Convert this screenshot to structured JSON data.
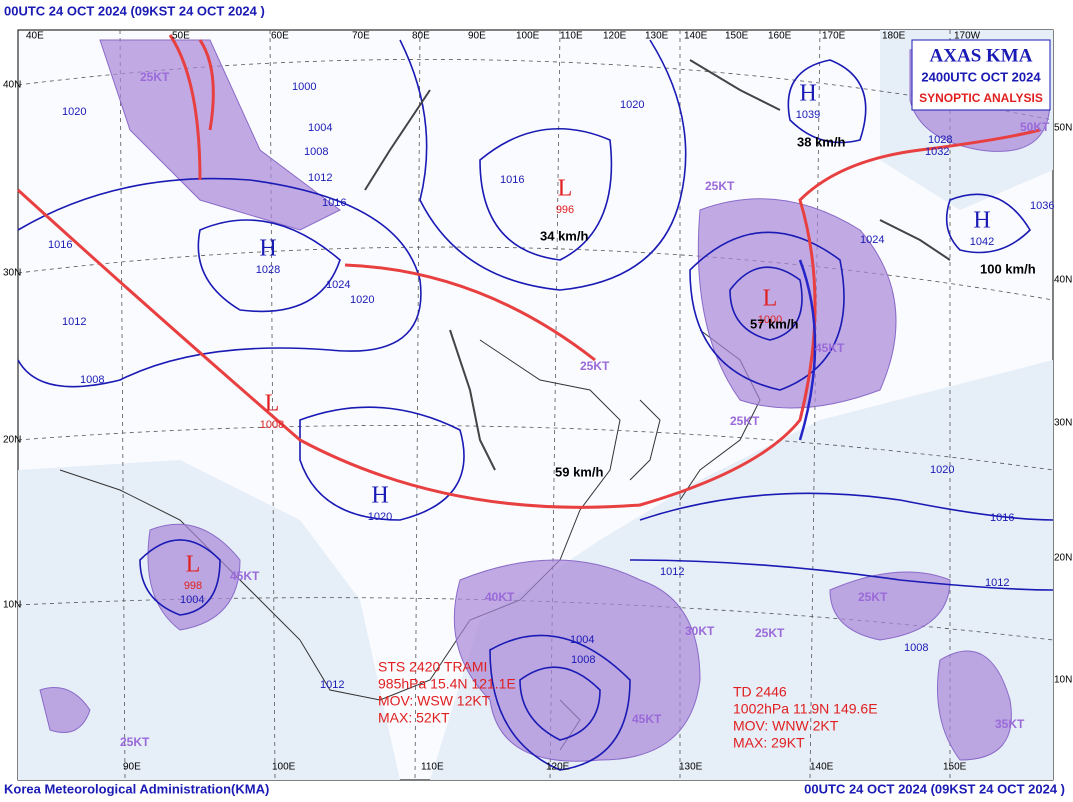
{
  "header": {
    "left": "00UTC 24 OCT 2024 (09KST 24 OCT 2024 )"
  },
  "footer": {
    "left": "Korea Meteorological Administration(KMA)",
    "right": "00UTC 24 OCT 2024 (09KST 24 OCT 2024 )"
  },
  "title_box": {
    "agency": "AXAS KMA",
    "time": "2400UTC OCT 2024",
    "kind": "SYNOPTIC ANALYSIS"
  },
  "top_lon": [
    "40E",
    "50E",
    "60E",
    "70E",
    "80E",
    "90E",
    "100E",
    "110E",
    "120E",
    "130E",
    "140E",
    "150E",
    "160E",
    "170E",
    "180E",
    "170W"
  ],
  "bottom_lon": [
    "90E",
    "100E",
    "110E",
    "120E",
    "130E",
    "140E",
    "150E"
  ],
  "left_lat": [
    "40N",
    "30N",
    "20N",
    "10N"
  ],
  "right_lat": [
    "50N",
    "40N",
    "30N",
    "20N",
    "10N"
  ],
  "systems": [
    {
      "symbol": "H",
      "value": "1028"
    },
    {
      "symbol": "H",
      "value": "1020"
    },
    {
      "symbol": "H",
      "value": "1039"
    },
    {
      "symbol": "H",
      "value": "1042"
    },
    {
      "symbol": "L",
      "value": "1008"
    },
    {
      "symbol": "L",
      "value": "998"
    },
    {
      "symbol": "L",
      "value": "1000"
    },
    {
      "symbol": "L",
      "value": "996"
    }
  ],
  "isobars": [
    "1000",
    "1004",
    "1008",
    "1012",
    "1016",
    "1020",
    "1024",
    "1016",
    "1020",
    "1012",
    "1008",
    "1004",
    "1016",
    "1020",
    "1024",
    "1028",
    "1032",
    "1036",
    "1020",
    "1012",
    "1008",
    "1016",
    "1012",
    "1004",
    "1008",
    "1012"
  ],
  "speeds": [
    "34 km/h",
    "57 km/h",
    "59 km/h",
    "100 km/h",
    "38 km/h"
  ],
  "winds": [
    "25KT",
    "40KT",
    "45KT",
    "30KT",
    "25KT",
    "35KT",
    "45KT",
    "25KT",
    "25KT",
    "50KT",
    "25KT",
    "25KT",
    "25KT",
    "45KT"
  ],
  "storm_sts": {
    "name": "STS 2420 TRAMI",
    "pos": "985hPa 15.4N 121.1E",
    "mov": "MOV: WSW 12KT",
    "max": "MAX: 52KT"
  },
  "storm_td": {
    "name": "TD 2446",
    "pos": "1002hPa 11.9N 149.6E",
    "mov": "MOV: WNW 2KT",
    "max": "MAX: 29KT"
  }
}
